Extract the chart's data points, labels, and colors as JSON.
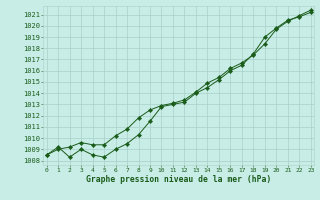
{
  "xlabel": "Graphe pression niveau de la mer (hPa)",
  "x_values": [
    0,
    1,
    2,
    3,
    4,
    5,
    6,
    7,
    8,
    9,
    10,
    11,
    12,
    13,
    14,
    15,
    16,
    17,
    18,
    19,
    20,
    21,
    22,
    23
  ],
  "y_measured": [
    1008.5,
    1009.2,
    1008.3,
    1009.0,
    1008.5,
    1008.3,
    1009.0,
    1009.5,
    1010.3,
    1011.5,
    1012.8,
    1013.0,
    1013.2,
    1014.0,
    1014.5,
    1015.2,
    1016.0,
    1016.5,
    1017.5,
    1019.0,
    1019.8,
    1020.5,
    1020.8,
    1021.2
  ],
  "y_trend": [
    1008.5,
    1009.0,
    1009.2,
    1009.6,
    1009.4,
    1009.4,
    1010.2,
    1010.8,
    1011.8,
    1012.5,
    1012.9,
    1013.1,
    1013.4,
    1014.1,
    1014.9,
    1015.4,
    1016.2,
    1016.7,
    1017.4,
    1018.4,
    1019.7,
    1020.4,
    1020.9,
    1021.4
  ],
  "ylim": [
    1007.6,
    1021.8
  ],
  "xlim": [
    -0.3,
    23.3
  ],
  "yticks": [
    1008,
    1009,
    1010,
    1011,
    1012,
    1013,
    1014,
    1015,
    1016,
    1017,
    1018,
    1019,
    1020,
    1021
  ],
  "xticks": [
    0,
    1,
    2,
    3,
    4,
    5,
    6,
    7,
    8,
    9,
    10,
    11,
    12,
    13,
    14,
    15,
    16,
    17,
    18,
    19,
    20,
    21,
    22,
    23
  ],
  "line_color": "#1a5c1a",
  "bg_color": "#c8ece6",
  "grid_color": "#a8d0c8",
  "text_color": "#1a5c1a",
  "marker": "D",
  "marker_size": 2.2,
  "linewidth": 0.7,
  "ytick_fontsize": 5.0,
  "xtick_fontsize": 4.5,
  "xlabel_fontsize": 5.8
}
